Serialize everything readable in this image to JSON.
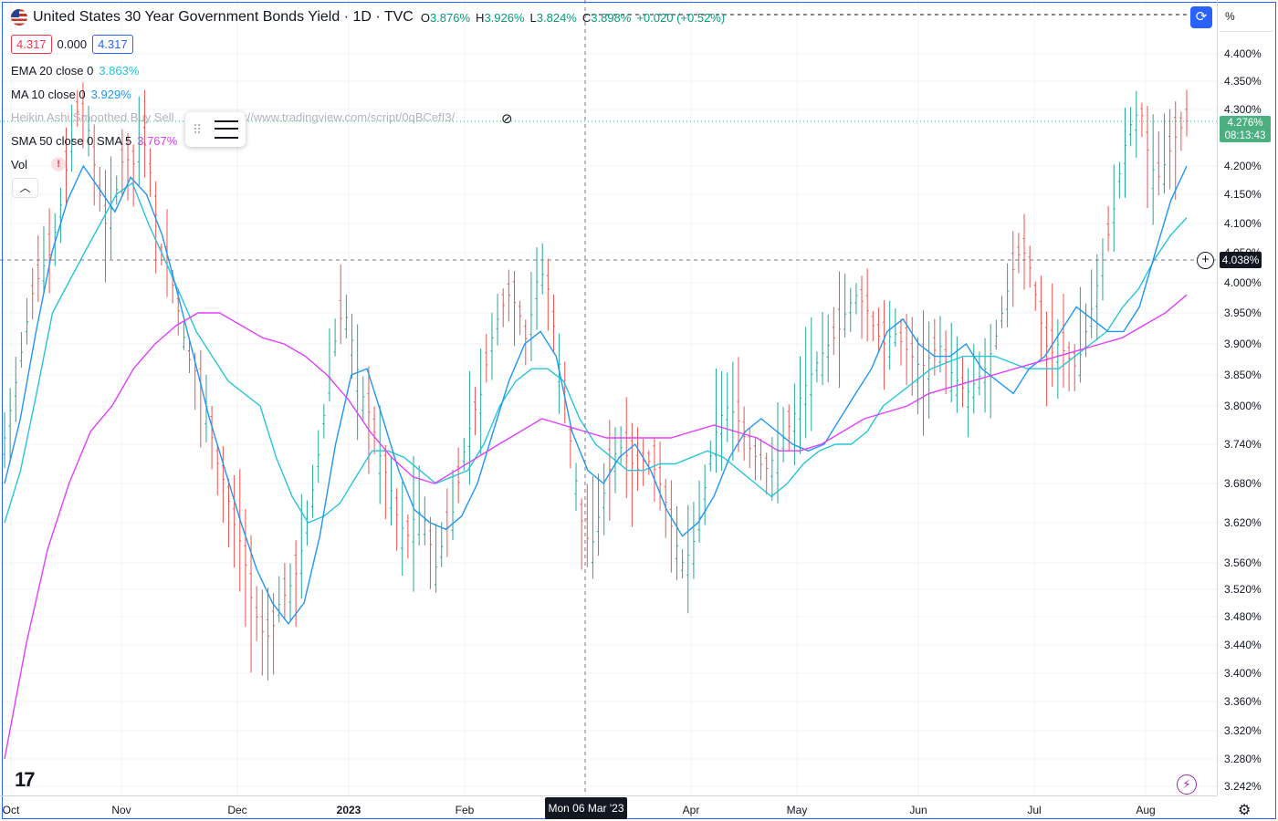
{
  "header": {
    "title": "United States 30 Year Government Bonds Yield · 1D · TVC",
    "ohlc": [
      {
        "k": "O",
        "v": "3.876%"
      },
      {
        "k": "H",
        "v": "3.926%"
      },
      {
        "k": "L",
        "v": "3.824%"
      },
      {
        "k": "C",
        "v": "3.898%"
      },
      {
        "k": "",
        "v": "+0.020 (+0.52%)"
      }
    ]
  },
  "price_boxes": {
    "bid": "4.317",
    "spread": "0.000",
    "ask": "4.317"
  },
  "legend": {
    "ema": {
      "label": "EMA 20 close 0",
      "value": "3.863%",
      "color": "#26c6da"
    },
    "ma": {
      "label": "MA 10 close 0",
      "value": "3.929%",
      "color": "#2196f3"
    },
    "heikin": {
      "label": "Heikin Ashi Smoothed Buy Sell",
      "url": "s://www.tradingview.com/script/0qBCefI3/"
    },
    "sma": {
      "label": "SMA 50 close 0 SMA 5",
      "value": "3.767%",
      "color": "#e040fb"
    },
    "vol": {
      "label": "Vol",
      "warn": "!"
    }
  },
  "axis": {
    "unit": "%",
    "price_tag": {
      "value": "4.276%",
      "countdown": "08:13:43"
    },
    "crosshair_price": "4.038%",
    "crosshair_date": "Mon 06 Mar '23"
  },
  "chart_data": {
    "type": "candlestick-bars",
    "x_labels": [
      {
        "label": "Oct"
      },
      {
        "label": "Nov"
      },
      {
        "label": "Dec"
      },
      {
        "label": "2023",
        "bold": true
      },
      {
        "label": "Feb"
      },
      {
        "label": "Apr"
      },
      {
        "label": "May"
      },
      {
        "label": "Jun"
      },
      {
        "label": "Jul"
      },
      {
        "label": "Aug"
      }
    ],
    "y_ticks": [
      4.4,
      4.35,
      4.3,
      4.2,
      4.15,
      4.1,
      4.05,
      4.0,
      3.95,
      3.9,
      3.85,
      3.8,
      3.74,
      3.68,
      3.62,
      3.56,
      3.52,
      3.48,
      3.44,
      3.4,
      3.36,
      3.32,
      3.28,
      3.242
    ],
    "y_tick_labels": [
      "4.400%",
      "4.350%",
      "4.300%",
      "4.200%",
      "4.150%",
      "4.100%",
      "4.050%",
      "4.000%",
      "3.950%",
      "3.900%",
      "3.850%",
      "3.800%",
      "3.740%",
      "3.680%",
      "3.620%",
      "3.560%",
      "3.520%",
      "3.480%",
      "3.440%",
      "3.400%",
      "3.360%",
      "3.320%",
      "3.280%",
      "3.242%"
    ],
    "ylim": [
      3.242,
      4.4
    ],
    "close_trend": [
      3.75,
      3.82,
      3.9,
      3.98,
      4.02,
      4.05,
      4.12,
      4.22,
      4.3,
      4.28,
      4.18,
      4.1,
      4.14,
      4.22,
      4.2,
      4.26,
      4.18,
      4.05,
      4.02,
      3.95,
      3.88,
      3.85,
      3.8,
      3.72,
      3.68,
      3.62,
      3.58,
      3.5,
      3.46,
      3.45,
      3.5,
      3.52,
      3.55,
      3.62,
      3.7,
      3.8,
      3.9,
      3.96,
      3.9,
      3.82,
      3.78,
      3.72,
      3.68,
      3.62,
      3.6,
      3.64,
      3.62,
      3.55,
      3.6,
      3.64,
      3.72,
      3.78,
      3.82,
      3.9,
      3.95,
      3.98,
      3.96,
      3.9,
      4.0,
      4.02,
      3.92,
      3.82,
      3.72,
      3.62,
      3.58,
      3.64,
      3.7,
      3.74,
      3.72,
      3.7,
      3.72,
      3.7,
      3.66,
      3.6,
      3.56,
      3.58,
      3.64,
      3.72,
      3.78,
      3.8,
      3.78,
      3.74,
      3.72,
      3.7,
      3.72,
      3.75,
      3.78,
      3.82,
      3.85,
      3.88,
      3.9,
      3.92,
      3.96,
      3.98,
      3.96,
      3.92,
      3.9,
      3.92,
      3.9,
      3.88,
      3.86,
      3.88,
      3.9,
      3.86,
      3.84,
      3.82,
      3.84,
      3.86,
      3.9,
      3.96,
      4.02,
      4.06,
      4.02,
      3.94,
      3.88,
      3.9,
      3.88,
      3.86,
      3.92,
      3.98,
      4.05,
      4.12,
      4.22,
      4.28,
      4.3,
      4.2,
      4.18,
      4.22,
      4.26,
      4.28
    ],
    "series": [
      {
        "name": "EMA 20 close 0",
        "color": "#26c6da",
        "values": [
          3.62,
          3.7,
          3.82,
          3.95,
          4.0,
          4.05,
          4.1,
          4.15,
          4.17,
          4.1,
          4.04,
          3.98,
          3.92,
          3.88,
          3.84,
          3.82,
          3.8,
          3.72,
          3.66,
          3.62,
          3.63,
          3.65,
          3.69,
          3.73,
          3.73,
          3.72,
          3.7,
          3.68,
          3.69,
          3.7,
          3.74,
          3.8,
          3.84,
          3.86,
          3.86,
          3.84,
          3.78,
          3.74,
          3.72,
          3.7,
          3.7,
          3.71,
          3.71,
          3.72,
          3.73,
          3.72,
          3.7,
          3.68,
          3.66,
          3.68,
          3.71,
          3.73,
          3.74,
          3.74,
          3.76,
          3.8,
          3.82,
          3.84,
          3.86,
          3.87,
          3.88,
          3.88,
          3.88,
          3.87,
          3.86,
          3.86,
          3.86,
          3.88,
          3.9,
          3.92,
          3.96,
          3.99,
          4.04,
          4.08,
          4.11
        ]
      },
      {
        "name": "MA 10 close 0",
        "color": "#2196f3",
        "values": [
          3.68,
          3.78,
          3.92,
          4.05,
          4.14,
          4.2,
          4.16,
          4.12,
          4.18,
          4.15,
          4.08,
          3.98,
          3.88,
          3.78,
          3.7,
          3.62,
          3.55,
          3.5,
          3.47,
          3.5,
          3.6,
          3.74,
          3.85,
          3.86,
          3.78,
          3.7,
          3.64,
          3.62,
          3.61,
          3.63,
          3.68,
          3.76,
          3.84,
          3.9,
          3.92,
          3.88,
          3.76,
          3.7,
          3.68,
          3.72,
          3.74,
          3.7,
          3.64,
          3.6,
          3.62,
          3.66,
          3.72,
          3.76,
          3.78,
          3.76,
          3.74,
          3.73,
          3.74,
          3.78,
          3.82,
          3.86,
          3.92,
          3.94,
          3.9,
          3.88,
          3.88,
          3.9,
          3.86,
          3.84,
          3.82,
          3.86,
          3.88,
          3.92,
          3.96,
          3.94,
          3.92,
          3.92,
          3.96,
          4.05,
          4.14,
          4.2
        ]
      },
      {
        "name": "SMA 50 close 0 SMA 5",
        "color": "#e040fb",
        "values": [
          3.28,
          3.44,
          3.58,
          3.68,
          3.76,
          3.8,
          3.86,
          3.9,
          3.93,
          3.95,
          3.95,
          3.93,
          3.91,
          3.9,
          3.88,
          3.85,
          3.81,
          3.76,
          3.72,
          3.69,
          3.68,
          3.7,
          3.72,
          3.74,
          3.76,
          3.78,
          3.77,
          3.76,
          3.75,
          3.75,
          3.75,
          3.75,
          3.76,
          3.77,
          3.76,
          3.75,
          3.73,
          3.73,
          3.74,
          3.76,
          3.78,
          3.79,
          3.8,
          3.82,
          3.83,
          3.84,
          3.85,
          3.86,
          3.87,
          3.88,
          3.89,
          3.9,
          3.91,
          3.93,
          3.95,
          3.98
        ]
      }
    ]
  }
}
